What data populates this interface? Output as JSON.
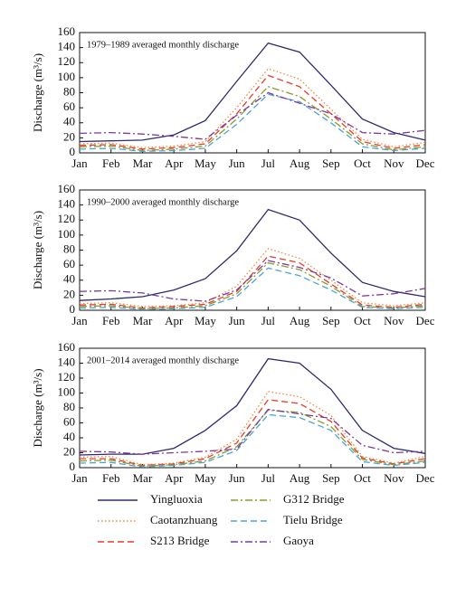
{
  "chart_data": [
    {
      "type": "line",
      "title": "1979–1989 averaged monthly discharge",
      "y_label": "Discharge (m³/s)",
      "categories": [
        "Jan",
        "Feb",
        "Mar",
        "Apr",
        "May",
        "Jun",
        "Jul",
        "Aug",
        "Sep",
        "Oct",
        "Nov",
        "Dec"
      ],
      "ylim": [
        0,
        160
      ],
      "yticks": [
        0,
        20,
        40,
        60,
        80,
        100,
        120,
        140,
        160
      ],
      "series": [
        {
          "name": "Yingluoxia",
          "color": "#2e2a6e",
          "dash": "solid",
          "values": [
            15,
            16,
            17,
            24,
            43,
            95,
            146,
            134,
            90,
            45,
            27,
            17
          ]
        },
        {
          "name": "Caotanzhuang",
          "color": "#f08a3c",
          "dash": "dotted",
          "values": [
            12,
            13,
            7,
            9,
            15,
            60,
            112,
            98,
            58,
            18,
            8,
            14
          ]
        },
        {
          "name": "S213 Bridge",
          "color": "#e83a2a",
          "dash": "dashed",
          "values": [
            10,
            11,
            5,
            7,
            12,
            52,
            103,
            88,
            52,
            15,
            6,
            11
          ]
        },
        {
          "name": "G312 Bridge",
          "color": "#8a9a2a",
          "dash": "dashdot",
          "values": [
            8,
            9,
            3,
            5,
            9,
            45,
            88,
            75,
            45,
            12,
            4,
            8
          ]
        },
        {
          "name": "Tielu Bridge",
          "color": "#4aa3d8",
          "dash": "dashed",
          "values": [
            5,
            6,
            2,
            3,
            6,
            38,
            78,
            68,
            40,
            8,
            3,
            6
          ]
        },
        {
          "name": "Gaoya",
          "color": "#7a3a9a",
          "dash": "dashdot",
          "values": [
            26,
            27,
            25,
            22,
            18,
            50,
            80,
            66,
            52,
            27,
            25,
            30
          ]
        }
      ]
    },
    {
      "type": "line",
      "title": "1990–2000 averaged monthly discharge",
      "y_label": "Discharge (m³/s)",
      "categories": [
        "Jan",
        "Feb",
        "Mar",
        "Apr",
        "May",
        "Jun",
        "Jul",
        "Aug",
        "Sep",
        "Oct",
        "Nov",
        "Dec"
      ],
      "ylim": [
        0,
        160
      ],
      "yticks": [
        0,
        20,
        40,
        60,
        80,
        100,
        120,
        140,
        160
      ],
      "series": [
        {
          "color": "#2e2a6e",
          "dash": "solid",
          "values": [
            13,
            15,
            18,
            27,
            42,
            79,
            134,
            120,
            76,
            37,
            25,
            18
          ]
        },
        {
          "color": "#f08a3c",
          "dash": "dotted",
          "values": [
            9,
            10,
            5,
            6,
            10,
            32,
            82,
            69,
            40,
            10,
            6,
            10
          ]
        },
        {
          "color": "#e83a2a",
          "dash": "dashed",
          "values": [
            7,
            8,
            3,
            5,
            8,
            25,
            72,
            63,
            35,
            7,
            4,
            8
          ]
        },
        {
          "color": "#8a9a2a",
          "dash": "dashdot",
          "values": [
            5,
            6,
            2,
            3,
            6,
            22,
            63,
            54,
            32,
            5,
            3,
            6
          ]
        },
        {
          "color": "#4aa3d8",
          "dash": "dashed",
          "values": [
            3,
            4,
            1,
            2,
            4,
            18,
            56,
            46,
            27,
            4,
            2,
            4
          ]
        },
        {
          "color": "#7a3a9a",
          "dash": "dashdot",
          "values": [
            25,
            26,
            23,
            15,
            12,
            27,
            66,
            57,
            43,
            19,
            22,
            29
          ]
        }
      ]
    },
    {
      "type": "line",
      "title": "2001–2014 averaged monthly discharge",
      "y_label": "Discharge (m³/s)",
      "categories": [
        "Jan",
        "Feb",
        "Mar",
        "Apr",
        "May",
        "Jun",
        "Jul",
        "Aug",
        "Sep",
        "Oct",
        "Nov",
        "Dec"
      ],
      "ylim": [
        0,
        160
      ],
      "yticks": [
        0,
        20,
        40,
        60,
        80,
        100,
        120,
        140,
        160
      ],
      "series": [
        {
          "color": "#2e2a6e",
          "dash": "solid",
          "values": [
            17,
            18,
            18,
            26,
            50,
            83,
            146,
            140,
            105,
            50,
            26,
            19
          ]
        },
        {
          "color": "#f08a3c",
          "dash": "dotted",
          "values": [
            14,
            15,
            4,
            6,
            14,
            38,
            102,
            95,
            70,
            15,
            6,
            15
          ]
        },
        {
          "color": "#e83a2a",
          "dash": "dashed",
          "values": [
            12,
            12,
            3,
            5,
            12,
            33,
            91,
            86,
            62,
            13,
            5,
            12
          ]
        },
        {
          "color": "#8a9a2a",
          "dash": "dashdot",
          "values": [
            9,
            10,
            2,
            4,
            9,
            28,
            77,
            74,
            55,
            11,
            4,
            9
          ]
        },
        {
          "color": "#4aa3d8",
          "dash": "dashed",
          "values": [
            6,
            7,
            1,
            3,
            7,
            23,
            71,
            67,
            50,
            8,
            3,
            7
          ]
        },
        {
          "color": "#7a3a9a",
          "dash": "dashdot",
          "values": [
            22,
            21,
            18,
            20,
            22,
            25,
            78,
            72,
            66,
            30,
            20,
            22
          ]
        }
      ]
    }
  ]
}
